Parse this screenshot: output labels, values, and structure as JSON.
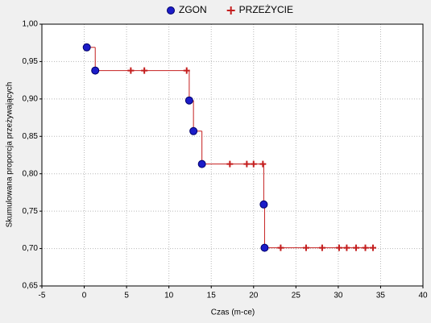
{
  "chart_data": {
    "type": "step",
    "xlabel": "Czas (m-ce)",
    "ylabel": "Skumulowana proporcja przeżywających",
    "xlim": [
      -5,
      40
    ],
    "ylim": [
      0.65,
      1.0
    ],
    "xticks": [
      -5,
      0,
      5,
      10,
      15,
      20,
      25,
      30,
      35,
      40
    ],
    "yticks": [
      {
        "value": 0.65,
        "label": "0,65"
      },
      {
        "value": 0.7,
        "label": "0,70"
      },
      {
        "value": 0.75,
        "label": "0,75"
      },
      {
        "value": 0.8,
        "label": "0,80"
      },
      {
        "value": 0.85,
        "label": "0,85"
      },
      {
        "value": 0.9,
        "label": "0,90"
      },
      {
        "value": 0.95,
        "label": "0,95"
      },
      {
        "value": 1.0,
        "label": "1,00"
      }
    ],
    "grid": true,
    "line_color": "#c41e1e",
    "series": [
      {
        "name": "ZGON",
        "color": "#1c1cc8",
        "marker": "circle",
        "x": [
          0.3,
          1.3,
          12.4,
          12.9,
          13.9,
          21.2,
          21.3
        ],
        "values": [
          0.969,
          0.938,
          0.898,
          0.857,
          0.813,
          0.759,
          0.701
        ]
      },
      {
        "name": "PRZEŻYCIE",
        "color": "#c41e1e",
        "marker": "plus",
        "x": [
          5.5,
          7.1,
          12.1,
          17.2,
          19.2,
          20.0,
          21.1,
          23.2,
          26.2,
          28.1,
          30.1,
          31.0,
          32.1,
          33.2,
          34.1
        ],
        "values": [
          0.938,
          0.938,
          0.938,
          0.813,
          0.813,
          0.813,
          0.813,
          0.701,
          0.701,
          0.701,
          0.701,
          0.701,
          0.701,
          0.701,
          0.701
        ]
      }
    ]
  }
}
